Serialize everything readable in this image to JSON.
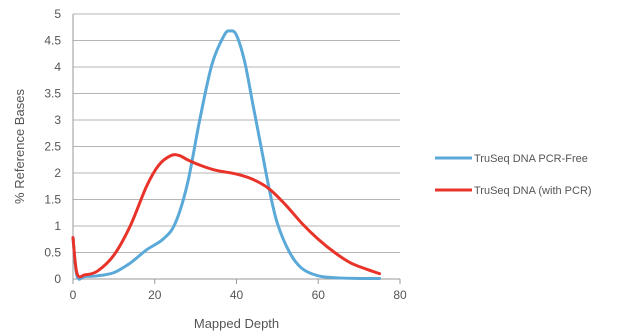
{
  "chart_data": {
    "type": "line",
    "title": "",
    "xlabel": "Mapped Depth",
    "ylabel": "% Reference Bases",
    "xlim": [
      0,
      80
    ],
    "ylim": [
      0,
      5
    ],
    "x_ticks": [
      "0",
      "20",
      "40",
      "60",
      "80"
    ],
    "y_ticks": [
      "0",
      "0.5",
      "1",
      "1.5",
      "2",
      "2.5",
      "3",
      "3.5",
      "4",
      "4.5",
      "5"
    ],
    "grid": "horizontal",
    "legend_position": "right",
    "series": [
      {
        "name": "TruSeq DNA PCR-Free",
        "color": "#5aa9d8",
        "points": [
          [
            0,
            0.78
          ],
          [
            1,
            0.05
          ],
          [
            3,
            0.05
          ],
          [
            6,
            0.06
          ],
          [
            10,
            0.12
          ],
          [
            14,
            0.3
          ],
          [
            18,
            0.55
          ],
          [
            22,
            0.75
          ],
          [
            25,
            1.05
          ],
          [
            28,
            1.8
          ],
          [
            31,
            3.0
          ],
          [
            34,
            4.05
          ],
          [
            37,
            4.6
          ],
          [
            38.5,
            4.68
          ],
          [
            40,
            4.6
          ],
          [
            42,
            4.1
          ],
          [
            44,
            3.3
          ],
          [
            46,
            2.5
          ],
          [
            48,
            1.7
          ],
          [
            50,
            1.05
          ],
          [
            53,
            0.5
          ],
          [
            56,
            0.2
          ],
          [
            60,
            0.06
          ],
          [
            65,
            0.02
          ],
          [
            70,
            0.01
          ],
          [
            75,
            0.01
          ]
        ]
      },
      {
        "name": "TruSeq DNA (with PCR)",
        "color": "#e8332a",
        "points": [
          [
            0,
            0.78
          ],
          [
            1,
            0.1
          ],
          [
            3,
            0.08
          ],
          [
            6,
            0.15
          ],
          [
            10,
            0.45
          ],
          [
            14,
            1.0
          ],
          [
            18,
            1.75
          ],
          [
            21,
            2.15
          ],
          [
            24,
            2.33
          ],
          [
            26,
            2.33
          ],
          [
            28,
            2.25
          ],
          [
            31,
            2.15
          ],
          [
            35,
            2.05
          ],
          [
            40,
            1.98
          ],
          [
            44,
            1.88
          ],
          [
            48,
            1.7
          ],
          [
            52,
            1.4
          ],
          [
            56,
            1.05
          ],
          [
            60,
            0.75
          ],
          [
            64,
            0.5
          ],
          [
            68,
            0.3
          ],
          [
            72,
            0.18
          ],
          [
            75,
            0.1
          ]
        ]
      }
    ]
  }
}
